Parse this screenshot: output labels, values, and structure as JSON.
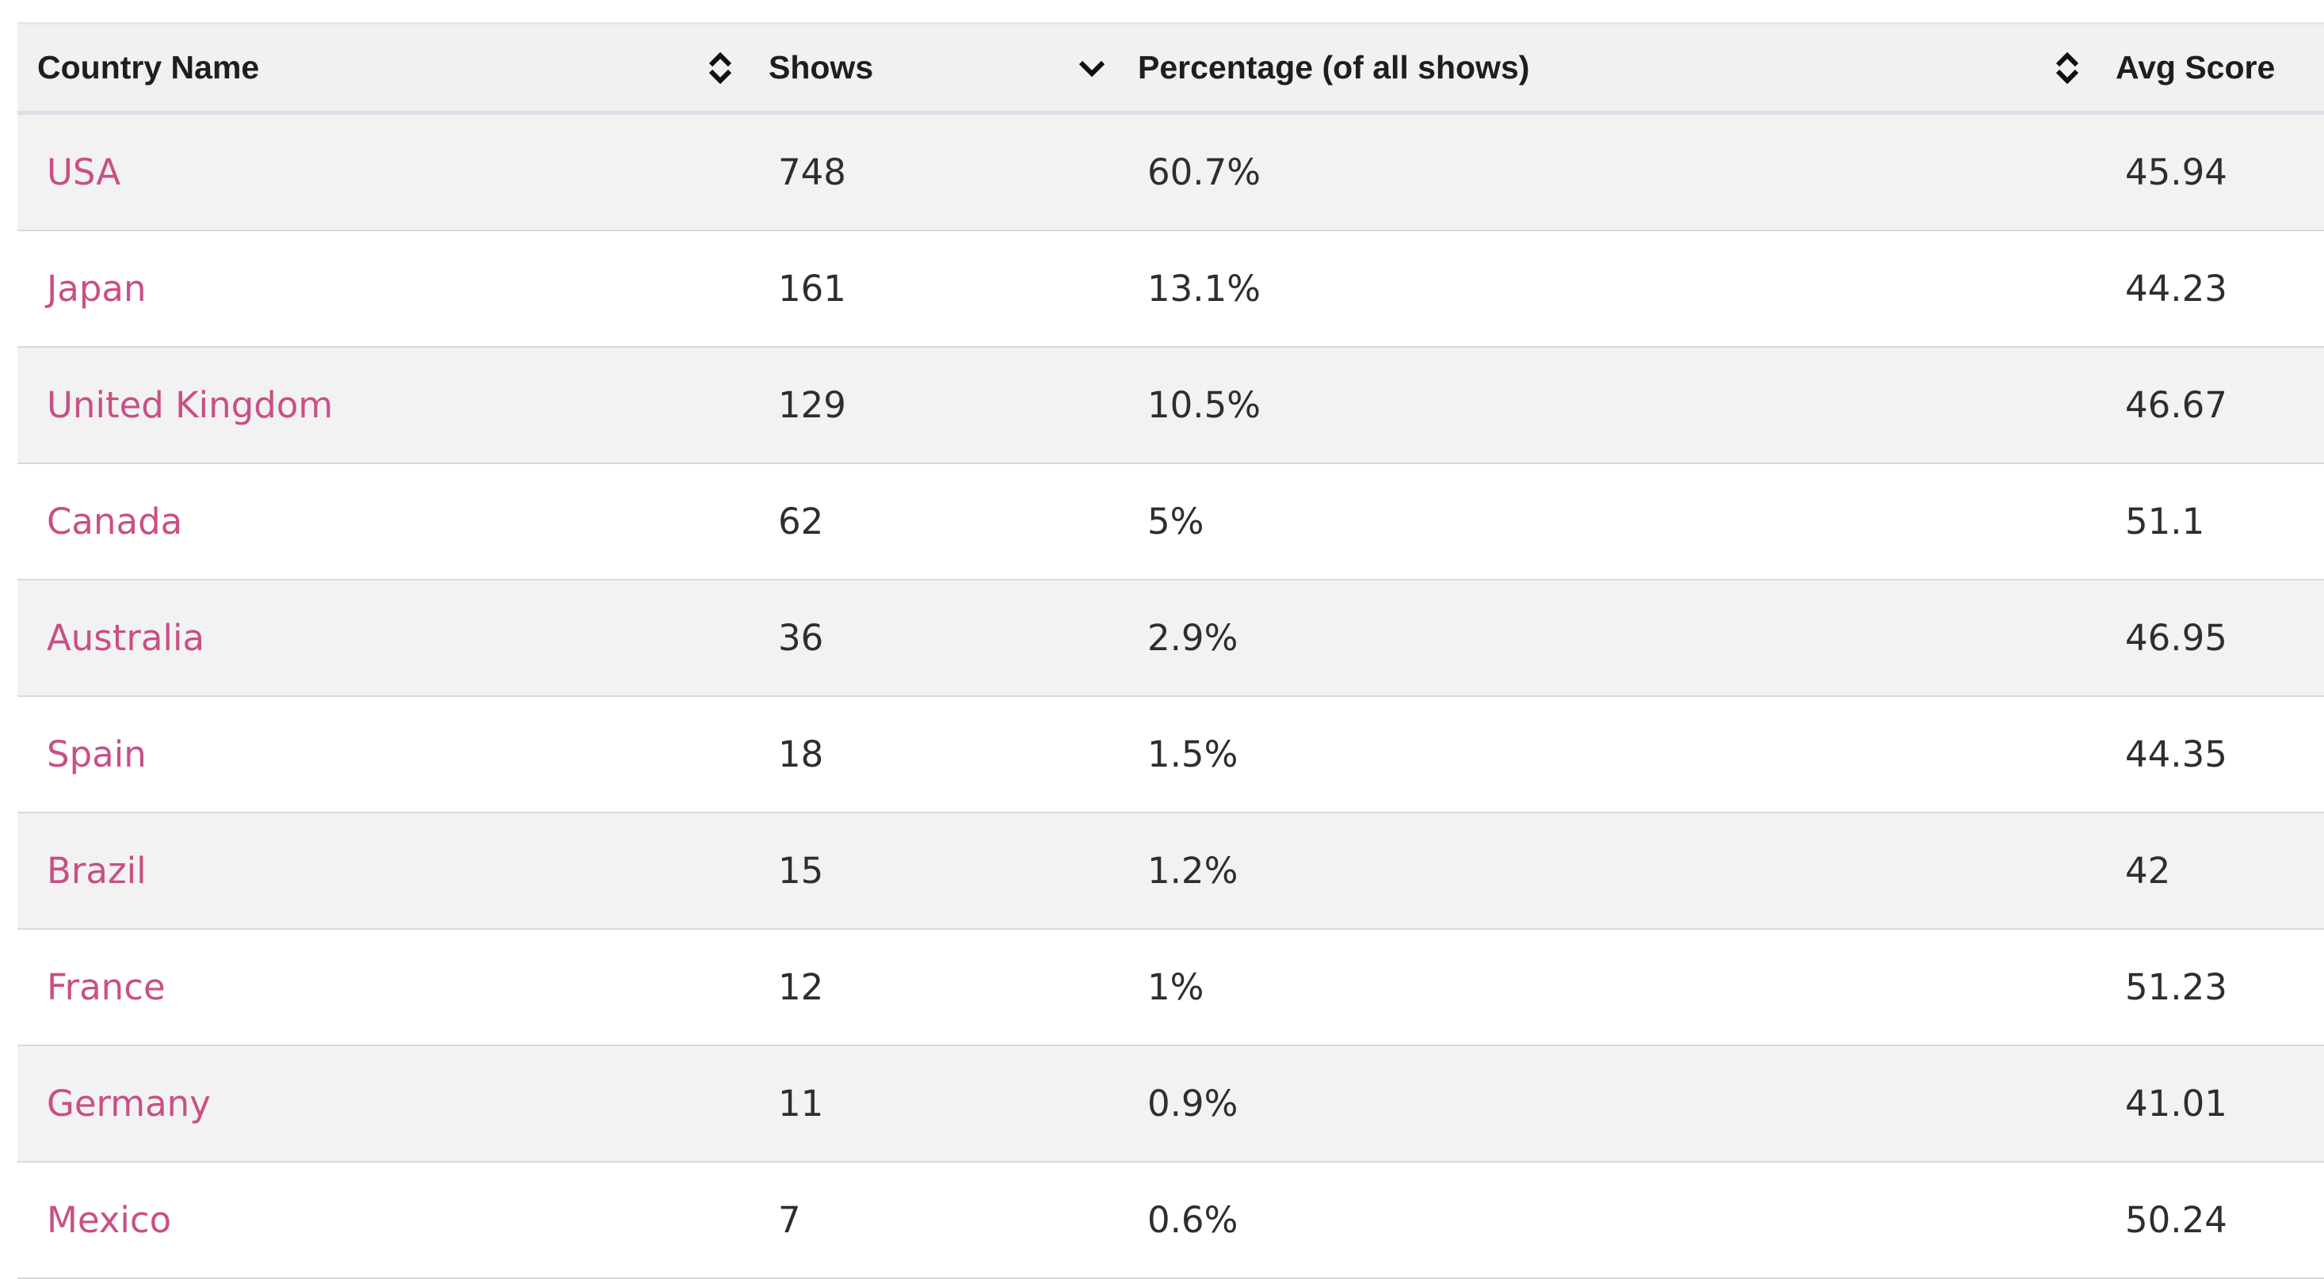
{
  "table": {
    "headers": {
      "country": "Country Name",
      "shows": "Shows",
      "percentage": "Percentage (of all shows)",
      "avg_score": "Avg Score"
    },
    "sort_icons": {
      "country": "sort-both-icon",
      "shows": "sort-descending-icon",
      "avg_score": "sort-both-icon"
    },
    "rows": [
      {
        "country": "USA",
        "shows": "748",
        "percentage": "60.7%",
        "avg_score": "45.94"
      },
      {
        "country": "Japan",
        "shows": "161",
        "percentage": "13.1%",
        "avg_score": "44.23"
      },
      {
        "country": "United Kingdom",
        "shows": "129",
        "percentage": "10.5%",
        "avg_score": "46.67"
      },
      {
        "country": "Canada",
        "shows": "62",
        "percentage": "5%",
        "avg_score": "51.1"
      },
      {
        "country": "Australia",
        "shows": "36",
        "percentage": "2.9%",
        "avg_score": "46.95"
      },
      {
        "country": "Spain",
        "shows": "18",
        "percentage": "1.5%",
        "avg_score": "44.35"
      },
      {
        "country": "Brazil",
        "shows": "15",
        "percentage": "1.2%",
        "avg_score": "42"
      },
      {
        "country": "France",
        "shows": "12",
        "percentage": "1%",
        "avg_score": "51.23"
      },
      {
        "country": "Germany",
        "shows": "11",
        "percentage": "0.9%",
        "avg_score": "41.01"
      },
      {
        "country": "Mexico",
        "shows": "7",
        "percentage": "0.6%",
        "avg_score": "50.24"
      }
    ]
  },
  "colors": {
    "link": "#c94f86",
    "header_bg": "#f1f1f1",
    "stripe_bg": "#f2f2f2"
  }
}
